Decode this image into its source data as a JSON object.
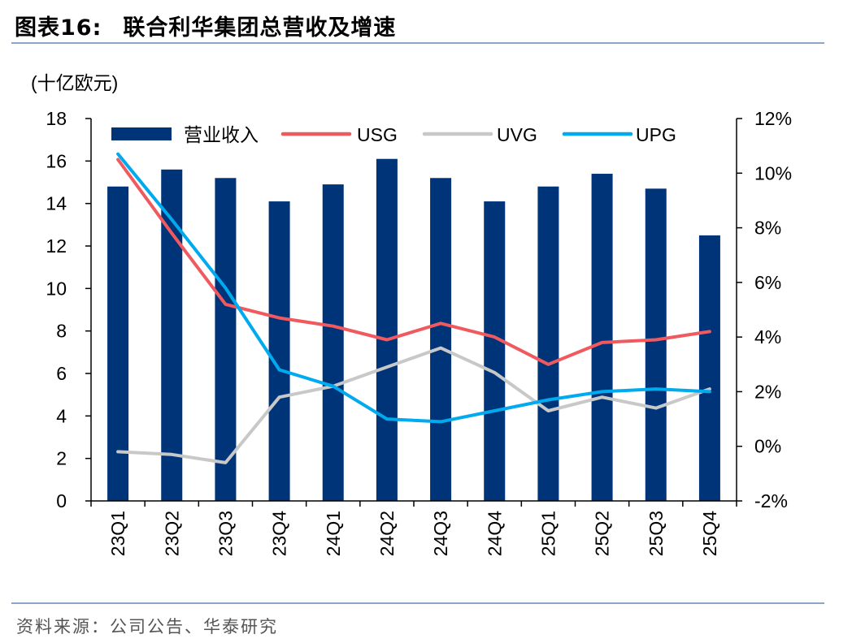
{
  "figure": {
    "label": "图表16:",
    "title": "联合利华集团总营收及增速",
    "source": "资料来源：公司公告、华泰研究"
  },
  "colors": {
    "bar": "#003478",
    "usg": "#f05a5f",
    "uvg": "#c8c8c8",
    "upg": "#00aaee"
  },
  "chart_data": {
    "type": "bar",
    "unit_label": "(十亿欧元)",
    "categories": [
      "23Q1",
      "23Q2",
      "23Q3",
      "23Q4",
      "24Q1",
      "24Q2",
      "24Q3",
      "24Q4",
      "25Q1",
      "25Q2",
      "25Q3",
      "25Q4"
    ],
    "bars": {
      "name": "营业收入",
      "values": [
        14.8,
        15.6,
        15.2,
        14.1,
        14.9,
        16.1,
        15.2,
        14.1,
        14.8,
        15.4,
        14.7,
        12.5
      ]
    },
    "lines": [
      {
        "name": "USG",
        "color_key": "usg",
        "values": [
          10.5,
          7.8,
          5.2,
          4.7,
          4.4,
          3.9,
          4.5,
          4.0,
          3.0,
          3.8,
          3.9,
          4.2
        ]
      },
      {
        "name": "UVG",
        "color_key": "uvg",
        "values": [
          -0.2,
          -0.3,
          -0.6,
          1.8,
          2.2,
          2.9,
          3.6,
          2.7,
          1.3,
          1.8,
          1.4,
          2.1
        ]
      },
      {
        "name": "UPG",
        "color_key": "upg",
        "values": [
          10.7,
          8.3,
          5.8,
          2.8,
          2.2,
          1.0,
          0.9,
          1.3,
          1.7,
          2.0,
          2.1,
          2.0
        ]
      }
    ],
    "y_left": {
      "min": 0,
      "max": 18,
      "step": 2,
      "ticks": [
        "0",
        "2",
        "4",
        "6",
        "8",
        "10",
        "12",
        "14",
        "16",
        "18"
      ]
    },
    "y_right": {
      "min": -2,
      "max": 12,
      "step": 2,
      "ticks": [
        "-2%",
        "0%",
        "2%",
        "4%",
        "6%",
        "8%",
        "10%",
        "12%"
      ]
    },
    "legend": [
      "营业收入",
      "USG",
      "UVG",
      "UPG"
    ]
  }
}
